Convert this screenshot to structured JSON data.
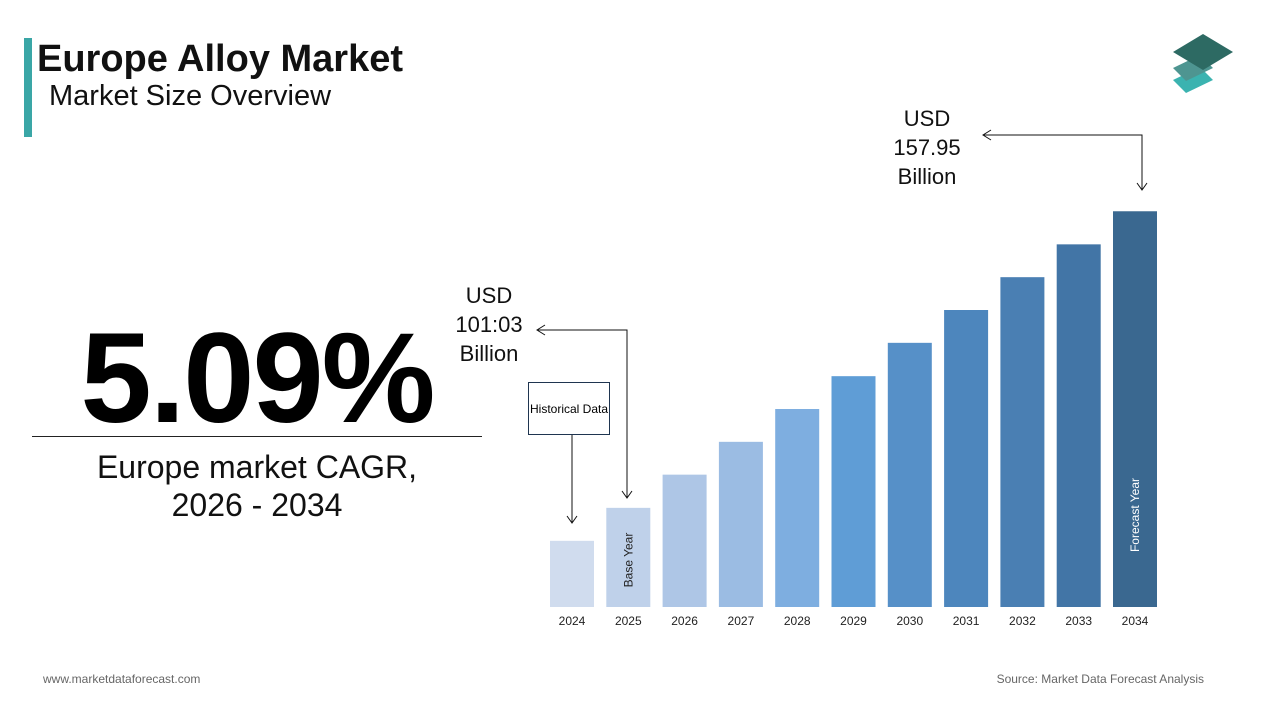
{
  "header": {
    "title": "Europe Alloy Market",
    "subtitle": "Market Size Overview"
  },
  "kpi": {
    "value": "5.09%",
    "label_line1": "Europe market CAGR,",
    "label_line2": "2026 - 2034"
  },
  "callouts": {
    "base": {
      "line1": "USD",
      "line2": "101:03",
      "line3": "Billion"
    },
    "forecast": {
      "line1": "USD",
      "line2": "157.95",
      "line3": "Billion"
    },
    "historical": "Historical Data"
  },
  "footer": {
    "website": "www.marketdataforecast.com",
    "source": "Source: Market Data Forecast Analysis"
  },
  "chart_data": {
    "type": "bar",
    "categories": [
      "2024",
      "2025",
      "2026",
      "2027",
      "2028",
      "2029",
      "2030",
      "2031",
      "2032",
      "2033",
      "2034"
    ],
    "values": [
      94.7,
      101.03,
      107.4,
      113.7,
      120.0,
      126.3,
      132.7,
      139.0,
      145.3,
      151.6,
      157.95
    ],
    "ylim": [
      82,
      158
    ],
    "bar_labels": {
      "2025": "Base Year",
      "2034": "Forecast Year"
    },
    "colors": [
      "#d0dcee",
      "#bfd1ea",
      "#aec6e6",
      "#9bbce3",
      "#7eaee0",
      "#5f9dd6",
      "#5690c8",
      "#4d86bd",
      "#4a7fb3",
      "#4275a6",
      "#3a6890"
    ]
  },
  "logo": {
    "icon": "stacked-layers-logo",
    "colors": [
      "#2d6a63",
      "#4e9591",
      "#3bb3b0"
    ]
  }
}
